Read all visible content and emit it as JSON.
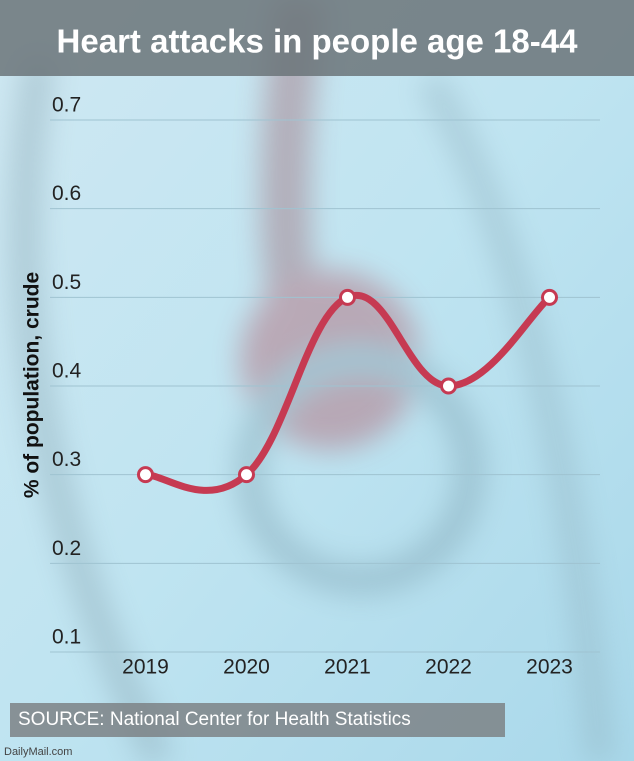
{
  "chart_data": {
    "type": "line",
    "title": "Heart attacks in people age 18-44",
    "y_label": "% of population, crude",
    "categories": [
      "2019",
      "2020",
      "2021",
      "2022",
      "2023"
    ],
    "values": [
      0.3,
      0.3,
      0.5,
      0.4,
      0.5
    ],
    "color": "#c63a52",
    "ylim": [
      0.1,
      0.7
    ],
    "yticks": [
      0.1,
      0.2,
      0.3,
      0.4,
      0.5,
      0.6,
      0.7
    ],
    "grid": true,
    "source": "SOURCE: National Center for Health Statistics",
    "credit": "DailyMail.com"
  }
}
